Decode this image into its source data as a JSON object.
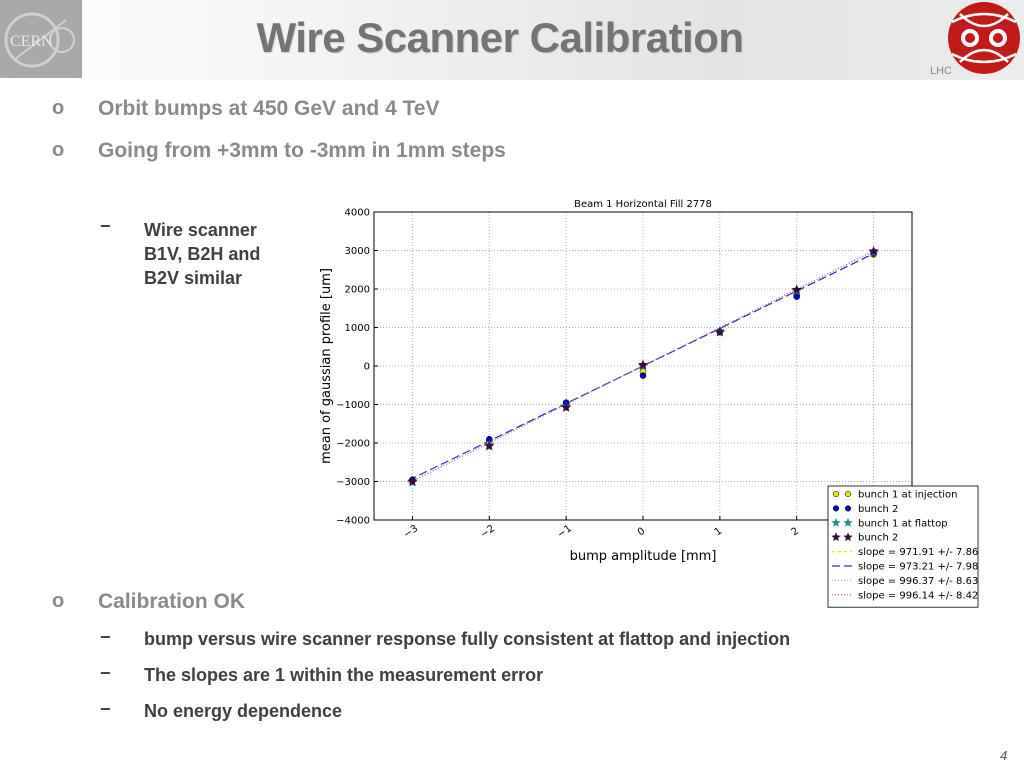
{
  "header": {
    "title": "Wire Scanner Calibration",
    "cern_logo_text": "CERN",
    "lhc_logo_text": "LHC"
  },
  "bullets": [
    {
      "mark": "o",
      "text": "Orbit bumps at 450 GeV and 4 TeV"
    },
    {
      "mark": "o",
      "text": "Going from +3mm to -3mm in 1mm steps"
    }
  ],
  "note": {
    "mark": "−",
    "lines": [
      "Wire scanner",
      "B1V, B2H and",
      "B2V similar"
    ]
  },
  "conclusion": {
    "mark": "o",
    "text": "Calibration OK",
    "items": [
      {
        "mark": "−",
        "text": "bump versus wire scanner response fully consistent at flattop and injection"
      },
      {
        "mark": "−",
        "text": "The slopes are 1 within the measurement error"
      },
      {
        "mark": "−",
        "text": "No energy dependence"
      }
    ]
  },
  "page_number": "4",
  "chart_data": {
    "type": "scatter",
    "title": "Beam 1 Horizontal Fill 2778",
    "xlabel": "bump amplitude [mm]",
    "ylabel": "mean of gaussian profile [um]",
    "xlim": [
      -3.5,
      3.5
    ],
    "ylim": [
      -4000,
      4000
    ],
    "x_ticks": [
      -3,
      -2,
      -1,
      0,
      1,
      2,
      3
    ],
    "x_tick_labels": [
      "−3",
      "−2",
      "−1",
      "0",
      "1",
      "2",
      "3"
    ],
    "y_ticks": [
      -4000,
      -3000,
      -2000,
      -1000,
      0,
      1000,
      2000,
      3000,
      4000
    ],
    "y_tick_labels": [
      "−4000",
      "−3000",
      "−2000",
      "−1000",
      "0",
      "1000",
      "2000",
      "3000",
      "4000"
    ],
    "grid": true,
    "legend_position": "lower-right",
    "series": [
      {
        "name": "bunch 1 at injection",
        "marker": "circle",
        "color": "#e8e800",
        "x": [
          -3,
          -2,
          -1,
          0,
          1,
          2,
          3
        ],
        "y": [
          -2980,
          -1950,
          -1000,
          -150,
          880,
          1850,
          2900
        ]
      },
      {
        "name": "bunch 2",
        "marker": "circle",
        "color": "#0000cc",
        "x": [
          -3,
          -2,
          -1,
          0,
          1,
          2,
          3
        ],
        "y": [
          -2950,
          -1900,
          -950,
          -250,
          900,
          1800,
          2920
        ]
      },
      {
        "name": "bunch 1 at flattop",
        "marker": "star",
        "color": "#2e8b8b",
        "x": [
          -3,
          -2,
          -1,
          0,
          1,
          2,
          3
        ],
        "y": [
          -3020,
          -2050,
          -1050,
          0,
          900,
          1950,
          2950
        ]
      },
      {
        "name": "bunch 2",
        "marker": "star",
        "color": "#3a0a3a",
        "x": [
          -3,
          -2,
          -1,
          0,
          1,
          2,
          3
        ],
        "y": [
          -3000,
          -2080,
          -1080,
          30,
          880,
          1980,
          2980
        ]
      }
    ],
    "fits": [
      {
        "name": "slope = 971.91 +/- 7.86",
        "slope": 971.91,
        "color": "#e8e800",
        "dash": "3,3"
      },
      {
        "name": "slope = 973.21 +/- 7.98",
        "slope": 973.21,
        "color": "#2233cc",
        "dash": "8,4"
      },
      {
        "name": "slope = 996.37 +/- 8.63",
        "slope": 996.37,
        "color": "#80c0c0",
        "dash": "1,2"
      },
      {
        "name": "slope = 996.14 +/- 8.42",
        "slope": 996.14,
        "color": "#cc44aa",
        "dash": "1,2"
      }
    ]
  }
}
